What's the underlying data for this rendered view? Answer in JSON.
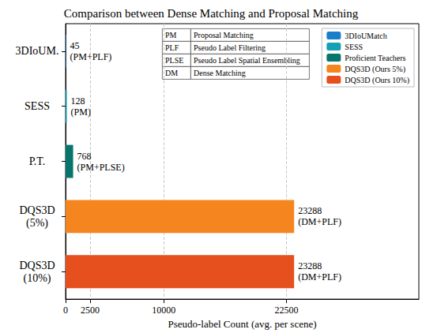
{
  "chart_data": {
    "type": "bar",
    "title": "Comparison between Dense Matching and Proposal Matching",
    "orientation": "horizontal",
    "categories": [
      "3DIoUM.",
      "SESS",
      "P.T.",
      "DQS3D\n(5%)",
      "DQS3D\n(10%)"
    ],
    "series": [
      {
        "name": "3DIoUMatch",
        "color": "#1a7fc9",
        "values": [
          45,
          null,
          null,
          null,
          null
        ],
        "value_labels": [
          "45\n(PM+PLF)",
          null,
          null,
          null,
          null
        ]
      },
      {
        "name": "SESS",
        "color": "#16a0b5",
        "values": [
          null,
          128,
          null,
          null,
          null
        ],
        "value_labels": [
          null,
          "128\n(PM)",
          null,
          null,
          null
        ]
      },
      {
        "name": "Proficient Teachers",
        "color": "#07756b",
        "values": [
          null,
          null,
          768,
          null,
          null
        ],
        "value_labels": [
          null,
          null,
          "768\n(PM+PLSE)",
          null,
          null
        ]
      },
      {
        "name": "DQS3D (Ours 5%)",
        "color": "#f5851f",
        "values": [
          null,
          null,
          null,
          23288,
          null
        ],
        "value_labels": [
          null,
          null,
          null,
          "23288\n(DM+PLF)",
          null
        ]
      },
      {
        "name": "DQS3D (Ours 10%)",
        "color": "#e5501e",
        "values": [
          null,
          null,
          null,
          null,
          23288
        ],
        "value_labels": [
          null,
          null,
          null,
          null,
          "23288\n(DM+PLF)"
        ]
      }
    ],
    "x_label": "Pseudo-label Count (avg. per scene)",
    "xlim": [
      0,
      36000
    ],
    "xticks": [
      0,
      2500,
      10000,
      22500
    ],
    "grid": true,
    "legend": "upper right",
    "data_labels": true,
    "abbreviations": [
      [
        "PM",
        "Proposal Matching"
      ],
      [
        "PLF",
        "Pseudo Label Filtering"
      ],
      [
        "PLSE",
        "Pseudo Label Spatial Ensembling"
      ],
      [
        "DM",
        "Dense Matching"
      ]
    ]
  }
}
